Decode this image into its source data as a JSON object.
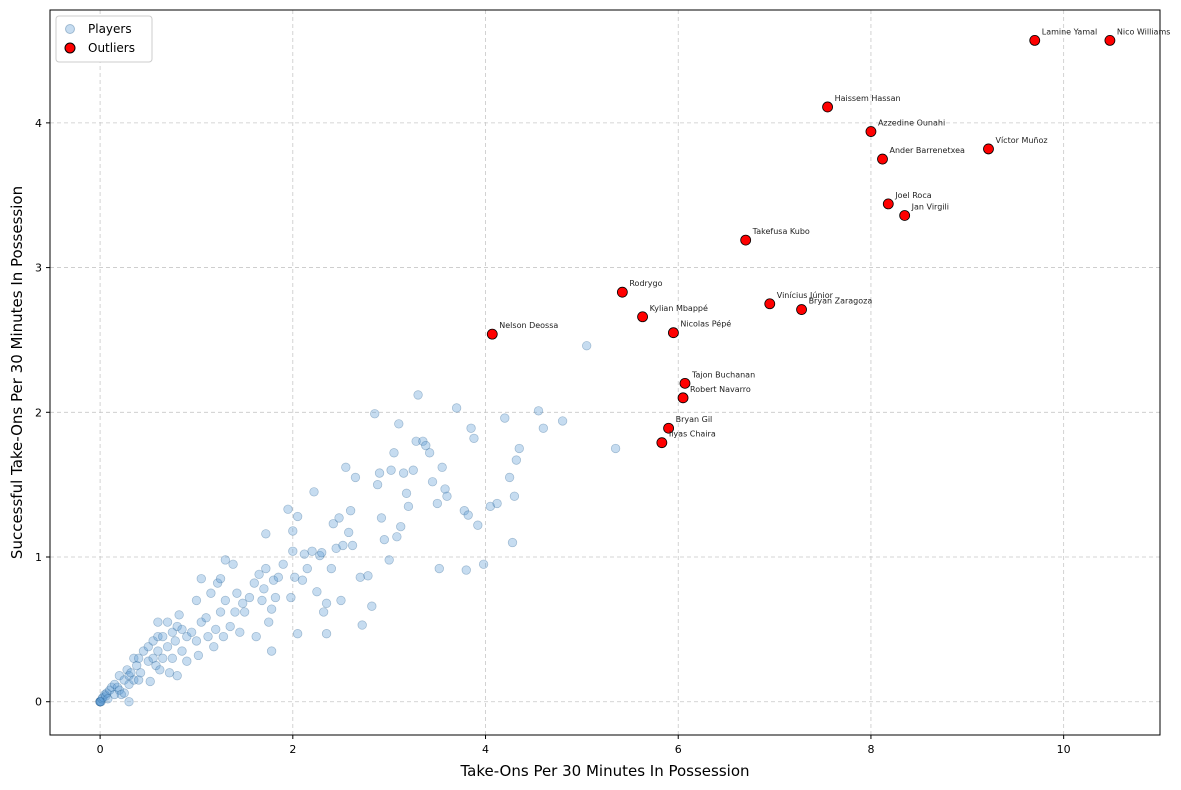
{
  "chart_data": {
    "type": "scatter",
    "xlabel": "Take-Ons Per 30 Minutes In Possession",
    "ylabel": "Successful Take-Ons Per 30 Minutes In Possession",
    "xlim": [
      -0.52,
      11.0
    ],
    "ylim": [
      -0.23,
      4.78
    ],
    "xticks": [
      0,
      2,
      4,
      6,
      8,
      10
    ],
    "yticks": [
      0,
      1,
      2,
      3,
      4
    ],
    "grid": true,
    "legend_position": "top-left",
    "colors": {
      "players": "#5b9bd5",
      "players_edge": "#1f5a8a",
      "outliers": "#ff0000",
      "outliers_edge": "#000000"
    },
    "series": [
      {
        "name": "Players",
        "points": [
          [
            0,
            0
          ],
          [
            0,
            0
          ],
          [
            0,
            0
          ],
          [
            0,
            0
          ],
          [
            0.01,
            0
          ],
          [
            0.02,
            0.02
          ],
          [
            0.03,
            0.03
          ],
          [
            0.05,
            0.05
          ],
          [
            0.06,
            0.04
          ],
          [
            0.07,
            0.06
          ],
          [
            0.08,
            0.02
          ],
          [
            0.1,
            0.08
          ],
          [
            0.12,
            0.1
          ],
          [
            0.15,
            0.05
          ],
          [
            0.15,
            0.12
          ],
          [
            0.18,
            0.1
          ],
          [
            0.2,
            0.08
          ],
          [
            0.2,
            0.18
          ],
          [
            0.22,
            0.05
          ],
          [
            0.25,
            0.15
          ],
          [
            0.25,
            0.06
          ],
          [
            0.28,
            0.22
          ],
          [
            0.3,
            0.12
          ],
          [
            0.3,
            0.18
          ],
          [
            0.3,
            0.0
          ],
          [
            0.32,
            0.2
          ],
          [
            0.35,
            0.15
          ],
          [
            0.35,
            0.3
          ],
          [
            0.38,
            0.25
          ],
          [
            0.4,
            0.15
          ],
          [
            0.4,
            0.3
          ],
          [
            0.42,
            0.2
          ],
          [
            0.45,
            0.35
          ],
          [
            0.5,
            0.28
          ],
          [
            0.5,
            0.38
          ],
          [
            0.52,
            0.14
          ],
          [
            0.55,
            0.3
          ],
          [
            0.55,
            0.42
          ],
          [
            0.58,
            0.25
          ],
          [
            0.6,
            0.45
          ],
          [
            0.6,
            0.35
          ],
          [
            0.6,
            0.55
          ],
          [
            0.62,
            0.22
          ],
          [
            0.65,
            0.3
          ],
          [
            0.65,
            0.45
          ],
          [
            0.7,
            0.38
          ],
          [
            0.7,
            0.55
          ],
          [
            0.72,
            0.2
          ],
          [
            0.75,
            0.48
          ],
          [
            0.75,
            0.3
          ],
          [
            0.78,
            0.42
          ],
          [
            0.8,
            0.52
          ],
          [
            0.8,
            0.18
          ],
          [
            0.82,
            0.6
          ],
          [
            0.85,
            0.5
          ],
          [
            0.85,
            0.35
          ],
          [
            0.9,
            0.45
          ],
          [
            0.9,
            0.28
          ],
          [
            0.95,
            0.48
          ],
          [
            1.0,
            0.42
          ],
          [
            1.0,
            0.7
          ],
          [
            1.02,
            0.32
          ],
          [
            1.05,
            0.85
          ],
          [
            1.05,
            0.55
          ],
          [
            1.1,
            0.58
          ],
          [
            1.12,
            0.45
          ],
          [
            1.15,
            0.75
          ],
          [
            1.18,
            0.38
          ],
          [
            1.2,
            0.5
          ],
          [
            1.22,
            0.82
          ],
          [
            1.25,
            0.62
          ],
          [
            1.25,
            0.85
          ],
          [
            1.28,
            0.45
          ],
          [
            1.3,
            0.7
          ],
          [
            1.3,
            0.98
          ],
          [
            1.35,
            0.52
          ],
          [
            1.38,
            0.95
          ],
          [
            1.4,
            0.62
          ],
          [
            1.42,
            0.75
          ],
          [
            1.45,
            0.48
          ],
          [
            1.48,
            0.68
          ],
          [
            1.5,
            0.62
          ],
          [
            1.55,
            0.72
          ],
          [
            1.6,
            0.82
          ],
          [
            1.62,
            0.45
          ],
          [
            1.65,
            0.88
          ],
          [
            1.68,
            0.7
          ],
          [
            1.7,
            0.78
          ],
          [
            1.72,
            0.92
          ],
          [
            1.72,
            1.16
          ],
          [
            1.75,
            0.55
          ],
          [
            1.78,
            0.35
          ],
          [
            1.78,
            0.64
          ],
          [
            1.8,
            0.84
          ],
          [
            1.82,
            0.72
          ],
          [
            1.85,
            0.86
          ],
          [
            1.9,
            0.95
          ],
          [
            1.95,
            1.33
          ],
          [
            1.98,
            0.72
          ],
          [
            2.0,
            1.18
          ],
          [
            2.0,
            1.04
          ],
          [
            2.02,
            0.86
          ],
          [
            2.05,
            0.47
          ],
          [
            2.05,
            1.28
          ],
          [
            2.1,
            0.84
          ],
          [
            2.12,
            1.02
          ],
          [
            2.15,
            0.92
          ],
          [
            2.2,
            1.04
          ],
          [
            2.22,
            1.45
          ],
          [
            2.25,
            0.76
          ],
          [
            2.28,
            1.01
          ],
          [
            2.3,
            1.03
          ],
          [
            2.32,
            0.62
          ],
          [
            2.35,
            0.68
          ],
          [
            2.35,
            0.47
          ],
          [
            2.4,
            0.92
          ],
          [
            2.42,
            1.23
          ],
          [
            2.45,
            1.06
          ],
          [
            2.48,
            1.27
          ],
          [
            2.5,
            0.7
          ],
          [
            2.52,
            1.08
          ],
          [
            2.55,
            1.62
          ],
          [
            2.58,
            1.17
          ],
          [
            2.6,
            1.32
          ],
          [
            2.62,
            1.08
          ],
          [
            2.65,
            1.55
          ],
          [
            2.7,
            0.86
          ],
          [
            2.72,
            0.53
          ],
          [
            2.78,
            0.87
          ],
          [
            2.82,
            0.66
          ],
          [
            2.85,
            1.99
          ],
          [
            2.88,
            1.5
          ],
          [
            2.9,
            1.58
          ],
          [
            2.92,
            1.27
          ],
          [
            2.95,
            1.12
          ],
          [
            3.0,
            0.98
          ],
          [
            3.02,
            1.6
          ],
          [
            3.05,
            1.72
          ],
          [
            3.08,
            1.14
          ],
          [
            3.1,
            1.92
          ],
          [
            3.12,
            1.21
          ],
          [
            3.15,
            1.58
          ],
          [
            3.18,
            1.44
          ],
          [
            3.2,
            1.35
          ],
          [
            3.25,
            1.6
          ],
          [
            3.28,
            1.8
          ],
          [
            3.3,
            2.12
          ],
          [
            3.35,
            1.8
          ],
          [
            3.38,
            1.77
          ],
          [
            3.42,
            1.72
          ],
          [
            3.45,
            1.52
          ],
          [
            3.5,
            1.37
          ],
          [
            3.52,
            0.92
          ],
          [
            3.55,
            1.62
          ],
          [
            3.58,
            1.47
          ],
          [
            3.6,
            1.42
          ],
          [
            3.7,
            2.03
          ],
          [
            3.78,
            1.32
          ],
          [
            3.8,
            0.91
          ],
          [
            3.82,
            1.29
          ],
          [
            3.85,
            1.89
          ],
          [
            3.88,
            1.82
          ],
          [
            3.92,
            1.22
          ],
          [
            3.98,
            0.95
          ],
          [
            4.05,
            1.35
          ],
          [
            4.12,
            1.37
          ],
          [
            4.2,
            1.96
          ],
          [
            4.25,
            1.55
          ],
          [
            4.28,
            1.1
          ],
          [
            4.3,
            1.42
          ],
          [
            4.32,
            1.67
          ],
          [
            4.35,
            1.75
          ],
          [
            4.55,
            2.01
          ],
          [
            4.6,
            1.89
          ],
          [
            4.8,
            1.94
          ],
          [
            5.05,
            2.46
          ],
          [
            5.35,
            1.75
          ]
        ]
      },
      {
        "name": "Outliers",
        "points": [
          {
            "name": "Lamine Yamal",
            "x": 9.7,
            "y": 4.57
          },
          {
            "name": "Nico Williams",
            "x": 10.48,
            "y": 4.57
          },
          {
            "name": "Haissem Hassan",
            "x": 7.55,
            "y": 4.11
          },
          {
            "name": "Azzedine Ounahi",
            "x": 8.0,
            "y": 3.94
          },
          {
            "name": "Víctor Muñoz",
            "x": 9.22,
            "y": 3.82
          },
          {
            "name": "Ander Barrenetxea",
            "x": 8.12,
            "y": 3.75
          },
          {
            "name": "Joel Roca",
            "x": 8.18,
            "y": 3.44
          },
          {
            "name": "Jan Virgili",
            "x": 8.35,
            "y": 3.36
          },
          {
            "name": "Takefusa Kubo",
            "x": 6.7,
            "y": 3.19
          },
          {
            "name": "Rodrygo",
            "x": 5.42,
            "y": 2.83
          },
          {
            "name": "Kylian Mbappé",
            "x": 5.63,
            "y": 2.66
          },
          {
            "name": "Vinícius Júnior",
            "x": 6.95,
            "y": 2.75
          },
          {
            "name": "Bryan Zaragoza",
            "x": 7.28,
            "y": 2.71
          },
          {
            "name": "Nicolas Pépé",
            "x": 5.95,
            "y": 2.55
          },
          {
            "name": "Nelson Deossa",
            "x": 4.07,
            "y": 2.54
          },
          {
            "name": "Tajon Buchanan",
            "x": 6.07,
            "y": 2.2
          },
          {
            "name": "Robert Navarro",
            "x": 6.05,
            "y": 2.1
          },
          {
            "name": "Bryan Gil",
            "x": 5.9,
            "y": 1.89
          },
          {
            "name": "Ilyas Chaira",
            "x": 5.83,
            "y": 1.79
          }
        ]
      }
    ]
  }
}
